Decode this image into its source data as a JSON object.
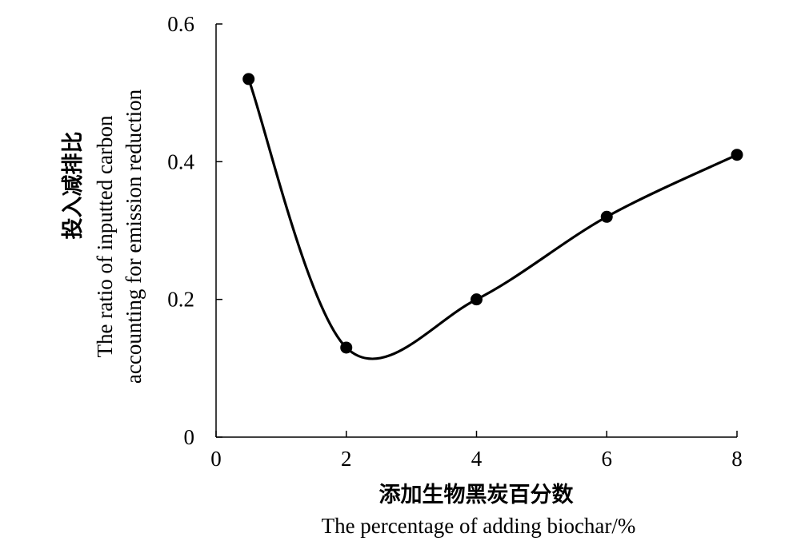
{
  "chart_data": {
    "type": "line",
    "x": [
      0.5,
      2,
      4,
      6,
      8
    ],
    "series": [
      {
        "values": [
          0.52,
          0.13,
          0.2,
          0.32,
          0.41
        ]
      }
    ],
    "xlabel_cn": "添加生物黑炭百分数",
    "xlabel_en": "The percentage of adding biochar/%",
    "ylabel_cn": "投入减排比",
    "ylabel_en_line1": "The ratio of inputted carbon",
    "ylabel_en_line2": "accounting for emission reduction",
    "xlim": [
      0,
      8
    ],
    "ylim": [
      0,
      0.6
    ],
    "x_ticks": [
      0,
      2,
      4,
      6,
      8
    ],
    "x_tick_labels": [
      "0",
      "2",
      "4",
      "6",
      "8"
    ],
    "y_ticks": [
      0,
      0.2,
      0.4,
      0.6
    ],
    "y_tick_labels": [
      "0",
      "0.2",
      "0.4",
      "0.6"
    ],
    "smooth": true,
    "markers": "filled-circle",
    "grid": false,
    "line_color": "#000000"
  }
}
